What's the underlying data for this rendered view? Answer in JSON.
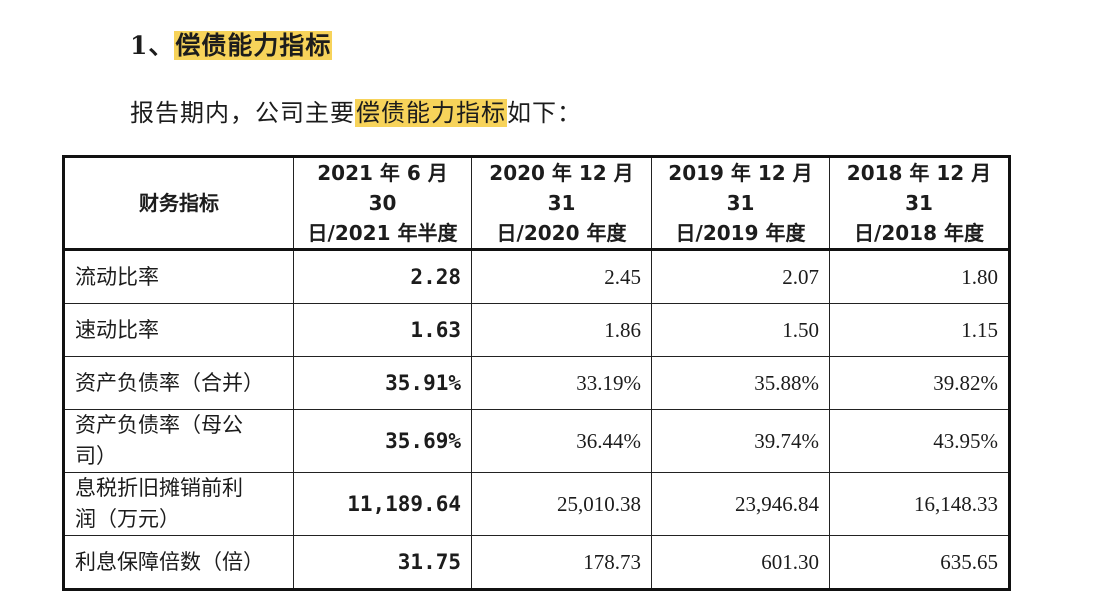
{
  "heading": {
    "number": "1、",
    "title": "偿债能力指标"
  },
  "intro": {
    "before": "报告期内，公司主要",
    "highlight": "偿债能力指标",
    "after": "如下："
  },
  "table": {
    "headers": [
      [
        "财务指标"
      ],
      [
        "2021 年 6 月 30",
        "日/2021 年半度"
      ],
      [
        "2020 年 12 月 31",
        "日/2020 年度"
      ],
      [
        "2019 年 12 月 31",
        "日/2019 年度"
      ],
      [
        "2018 年 12 月 31",
        "日/2018 年度"
      ]
    ],
    "rows": [
      {
        "name": [
          "流动比率"
        ],
        "values": [
          "2.28",
          "2.45",
          "2.07",
          "1.80"
        ]
      },
      {
        "name": [
          "速动比率"
        ],
        "values": [
          "1.63",
          "1.86",
          "1.50",
          "1.15"
        ]
      },
      {
        "name": [
          "资产负债率（合并）"
        ],
        "values": [
          "35.91%",
          "33.19%",
          "35.88%",
          "39.82%"
        ]
      },
      {
        "name": [
          "资产负债率（母公",
          "司）"
        ],
        "values": [
          "35.69%",
          "36.44%",
          "39.74%",
          "43.95%"
        ]
      },
      {
        "name": [
          "息税折旧摊销前利",
          "润（万元）"
        ],
        "values": [
          "11,189.64",
          "25,010.38",
          "23,946.84",
          "16,148.33"
        ]
      },
      {
        "name": [
          "利息保障倍数（倍）"
        ],
        "values": [
          "31.75",
          "178.73",
          "601.30",
          "635.65"
        ]
      }
    ]
  }
}
